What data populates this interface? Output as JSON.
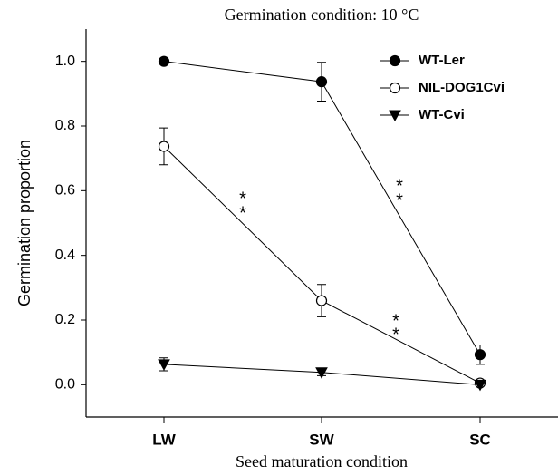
{
  "chart_data": {
    "type": "line",
    "title": "Germination condition: 10 °C",
    "xlabel": "Seed maturation condition",
    "ylabel": "Germination proportion",
    "categories": [
      "LW",
      "SW",
      "SC"
    ],
    "series": [
      {
        "name": "WT-Ler",
        "color": "#000000",
        "marker": "circle",
        "marker_fill": "#000000",
        "values": [
          1.0,
          0.937,
          0.093
        ],
        "errors": [
          0,
          0.06,
          0.03
        ]
      },
      {
        "name": "NIL-DOG1Cvi",
        "color": "#000000",
        "marker": "circle",
        "marker_fill": "#ffffff",
        "values": [
          0.737,
          0.26,
          0.005
        ],
        "errors": [
          0.057,
          0.05,
          0.005
        ]
      },
      {
        "name": "WT-Cvi",
        "color": "#000000",
        "marker": "triangle-down",
        "marker_fill": "#000000",
        "values": [
          0.063,
          0.038,
          0.0
        ],
        "errors": [
          0.02,
          0.01,
          0
        ]
      }
    ],
    "annotations": [
      "*",
      "*",
      "*",
      "*",
      "*",
      "*"
    ],
    "ylim": [
      -0.1,
      1.1
    ],
    "yticks": [
      {
        "value": 0,
        "label": "0.0"
      },
      {
        "value": 0.2,
        "label": "0.2"
      },
      {
        "value": 0.4,
        "label": "0.4"
      },
      {
        "value": 0.6,
        "label": "0.6"
      },
      {
        "value": 0.8,
        "label": "0.8"
      },
      {
        "value": 1.0,
        "label": "1.0"
      }
    ],
    "legend": "upper right",
    "grid": false
  }
}
